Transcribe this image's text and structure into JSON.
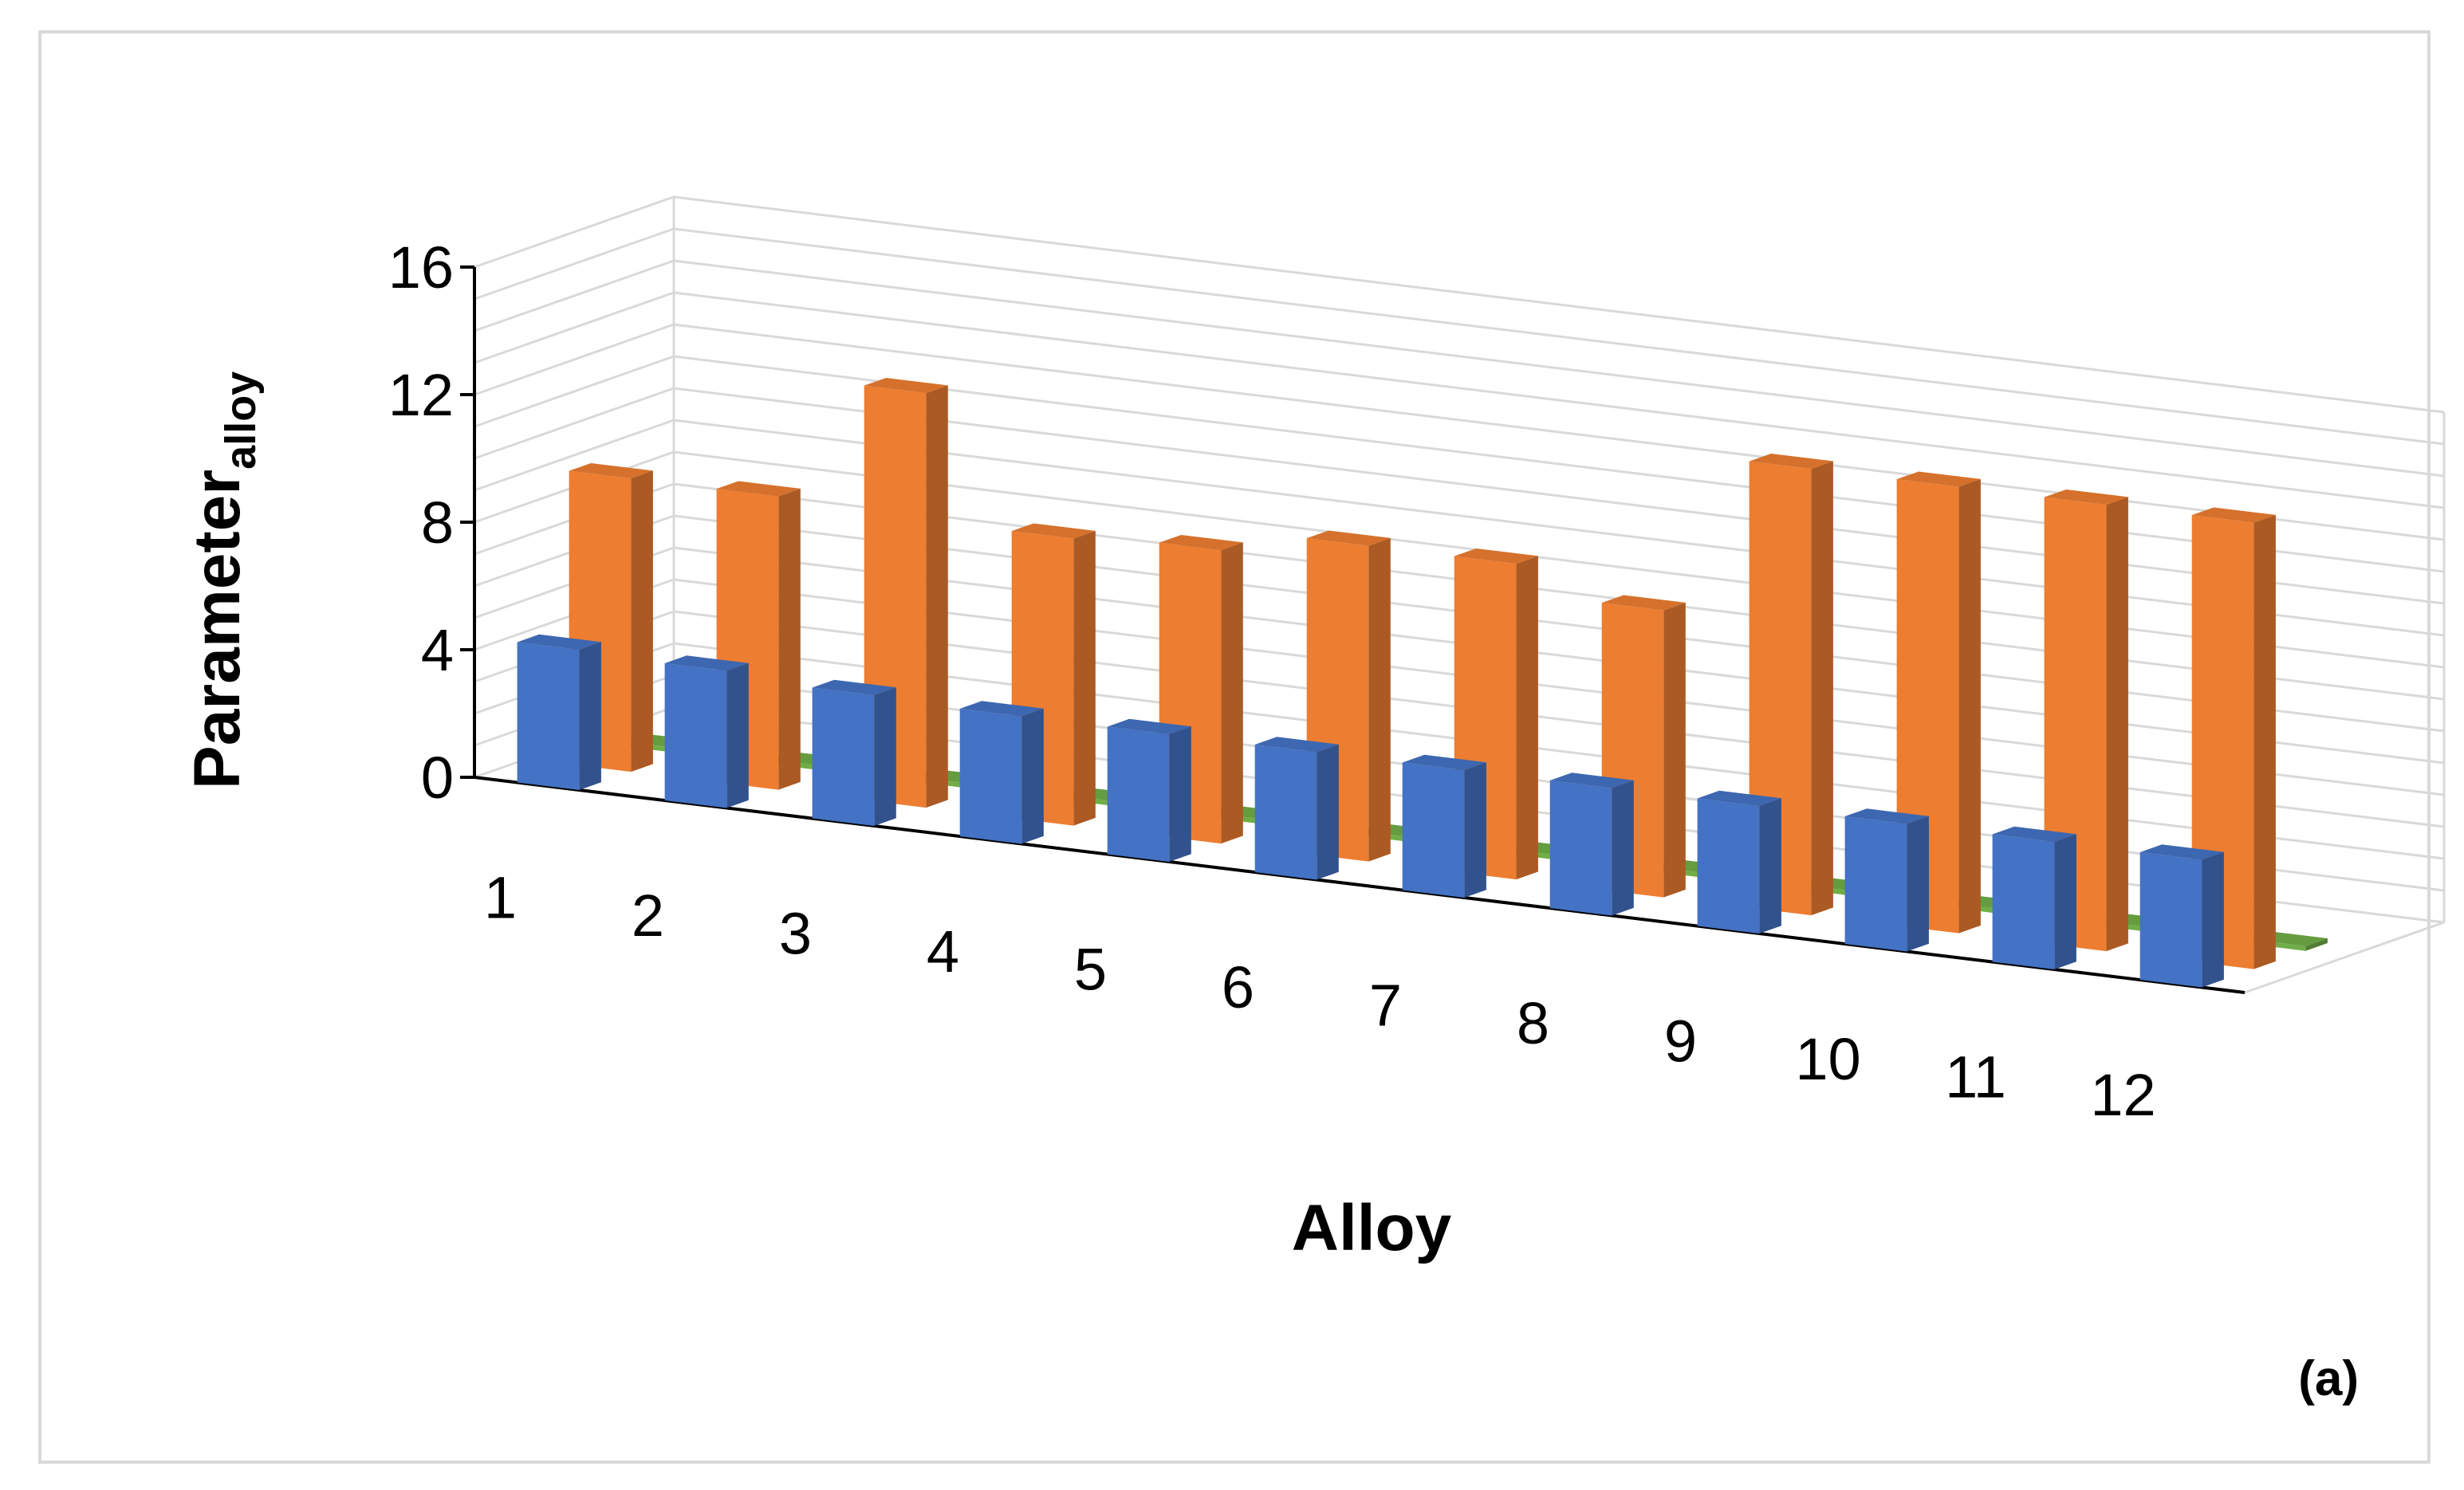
{
  "chart_data": {
    "type": "bar",
    "subtype": "3d-clustered-column",
    "categories": [
      "1",
      "2",
      "3",
      "4",
      "5",
      "6",
      "7",
      "8",
      "9",
      "10",
      "11",
      "12"
    ],
    "series": [
      {
        "color": "#4472c4",
        "values": [
          4.4,
          4.3,
          4.1,
          4.0,
          4.0,
          4.0,
          4.0,
          4.0,
          4.0,
          4.0,
          4.0,
          4.0
        ]
      },
      {
        "color": "#ed7d31",
        "values": [
          9.2,
          9.2,
          13.0,
          9.0,
          9.2,
          9.9,
          9.9,
          9.0,
          14.0,
          14.0,
          14.0,
          14.0
        ]
      },
      {
        "color": "#70ad47",
        "values": [
          0.15,
          0.15,
          0.15,
          0.15,
          0.15,
          0.15,
          0.15,
          0.15,
          0.15,
          0.15,
          0.15,
          0.15
        ]
      }
    ],
    "ylim": [
      0,
      16
    ],
    "yticks": [
      "0",
      "4",
      "8",
      "12",
      "16"
    ],
    "ylabel_main": "Parameter",
    "ylabel_sub": "alloy",
    "xlabel": "Alloy",
    "grid": true,
    "panel_label": "(a)"
  }
}
